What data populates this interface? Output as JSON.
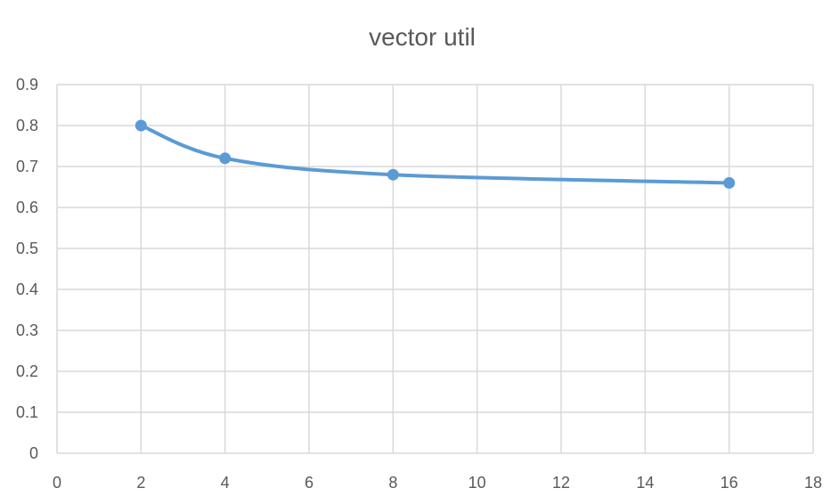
{
  "chart_data": {
    "type": "scatter",
    "title": "vector util",
    "xlabel": "",
    "ylabel": "",
    "xlim": [
      0,
      18
    ],
    "ylim": [
      0,
      0.9
    ],
    "xticks": [
      "0",
      "2",
      "4",
      "6",
      "8",
      "10",
      "12",
      "14",
      "16",
      "18"
    ],
    "yticks": [
      "0",
      "0.1",
      "0.2",
      "0.3",
      "0.4",
      "0.5",
      "0.6",
      "0.7",
      "0.8",
      "0.9"
    ],
    "grid": true,
    "legend": "none",
    "series": [
      {
        "x": [
          2,
          4,
          8,
          16
        ],
        "y": [
          0.8,
          0.72,
          0.68,
          0.66
        ],
        "color": "#5b9bd5",
        "marker": "circle",
        "line": "smooth"
      }
    ]
  }
}
